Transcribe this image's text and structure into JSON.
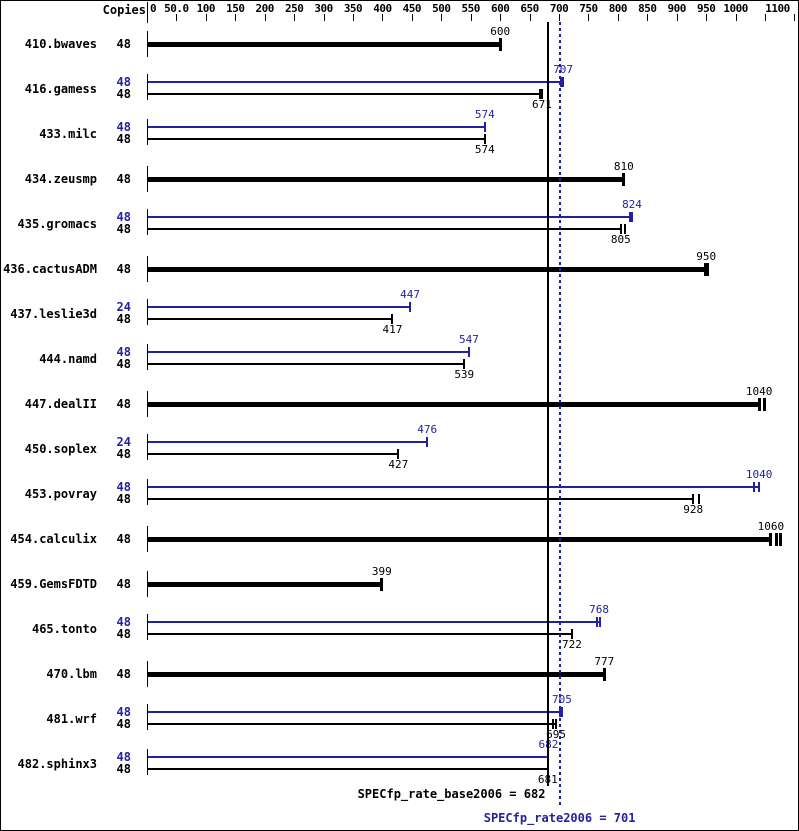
{
  "chart_data": {
    "type": "bar",
    "orientation": "horizontal",
    "copies_header": "Copies",
    "xlim": [
      0,
      1100
    ],
    "grid": false,
    "axis_ticks": [
      {
        "v": 0,
        "label": "0"
      },
      {
        "v": 50,
        "label": "50.0"
      },
      {
        "v": 100,
        "label": "100"
      },
      {
        "v": 150,
        "label": "150"
      },
      {
        "v": 200,
        "label": "200"
      },
      {
        "v": 250,
        "label": "250"
      },
      {
        "v": 300,
        "label": "300"
      },
      {
        "v": 350,
        "label": "350"
      },
      {
        "v": 400,
        "label": "400"
      },
      {
        "v": 450,
        "label": "450"
      },
      {
        "v": 500,
        "label": "500"
      },
      {
        "v": 550,
        "label": "550"
      },
      {
        "v": 600,
        "label": "600"
      },
      {
        "v": 650,
        "label": "650"
      },
      {
        "v": 700,
        "label": "700"
      },
      {
        "v": 750,
        "label": "750"
      },
      {
        "v": 800,
        "label": "800"
      },
      {
        "v": 850,
        "label": "850"
      },
      {
        "v": 900,
        "label": "900"
      },
      {
        "v": 950,
        "label": "950"
      },
      {
        "v": 1000,
        "label": "1000"
      },
      {
        "v": 1050,
        "label": ""
      },
      {
        "v": 1100,
        "label": "1100"
      }
    ],
    "series_colors": {
      "base": "#000000",
      "peak": "#2222a0"
    },
    "benchmarks": [
      {
        "name": "410.bwaves",
        "bars": [
          {
            "series": "base",
            "copies": "48",
            "value": 600,
            "label": "600",
            "label_side": "above",
            "bold": true,
            "marks": [
              600
            ]
          }
        ]
      },
      {
        "name": "416.gamess",
        "bars": [
          {
            "series": "peak",
            "copies": "48",
            "value": 707,
            "label": "707",
            "label_side": "above",
            "bold": false,
            "marks": [
              704,
              707
            ]
          },
          {
            "series": "base",
            "copies": "48",
            "value": 671,
            "label": "671",
            "label_side": "below",
            "bold": false,
            "marks": [
              668,
              671
            ]
          }
        ]
      },
      {
        "name": "433.milc",
        "bars": [
          {
            "series": "peak",
            "copies": "48",
            "value": 574,
            "label": "574",
            "label_side": "above",
            "bold": false,
            "marks": [
              574
            ]
          },
          {
            "series": "base",
            "copies": "48",
            "value": 574,
            "label": "574",
            "label_side": "below",
            "bold": false,
            "marks": [
              574
            ]
          }
        ]
      },
      {
        "name": "434.zeusmp",
        "bars": [
          {
            "series": "base",
            "copies": "48",
            "value": 810,
            "label": "810",
            "label_side": "above",
            "bold": true,
            "marks": [
              810
            ]
          }
        ]
      },
      {
        "name": "435.gromacs",
        "bars": [
          {
            "series": "peak",
            "copies": "48",
            "value": 824,
            "label": "824",
            "label_side": "above",
            "bold": false,
            "marks": [
              821,
              824
            ]
          },
          {
            "series": "base",
            "copies": "48",
            "value": 805,
            "label": "805",
            "label_side": "below",
            "bold": false,
            "marks": [
              805,
              812
            ]
          }
        ]
      },
      {
        "name": "436.cactusADM",
        "bars": [
          {
            "series": "base",
            "copies": "48",
            "value": 950,
            "label": "950",
            "label_side": "above",
            "bold": true,
            "marks": [
              949,
              953
            ]
          }
        ]
      },
      {
        "name": "437.leslie3d",
        "bars": [
          {
            "series": "peak",
            "copies": "24",
            "value": 447,
            "label": "447",
            "label_side": "above",
            "bold": false,
            "marks": [
              447
            ]
          },
          {
            "series": "base",
            "copies": "48",
            "value": 417,
            "label": "417",
            "label_side": "below",
            "bold": false,
            "marks": [
              417
            ]
          }
        ]
      },
      {
        "name": "444.namd",
        "bars": [
          {
            "series": "peak",
            "copies": "48",
            "value": 547,
            "label": "547",
            "label_side": "above",
            "bold": false,
            "marks": [
              547
            ]
          },
          {
            "series": "base",
            "copies": "48",
            "value": 539,
            "label": "539",
            "label_side": "below",
            "bold": false,
            "marks": [
              539
            ]
          }
        ]
      },
      {
        "name": "447.dealII",
        "bars": [
          {
            "series": "base",
            "copies": "48",
            "value": 1040,
            "label": "1040",
            "label_side": "above",
            "bold": true,
            "marks": [
              1040,
              1049
            ]
          }
        ]
      },
      {
        "name": "450.soplex",
        "bars": [
          {
            "series": "peak",
            "copies": "24",
            "value": 476,
            "label": "476",
            "label_side": "above",
            "bold": false,
            "marks": [
              476
            ]
          },
          {
            "series": "base",
            "copies": "48",
            "value": 427,
            "label": "427",
            "label_side": "below",
            "bold": false,
            "marks": [
              427
            ]
          }
        ]
      },
      {
        "name": "453.povray",
        "bars": [
          {
            "series": "peak",
            "copies": "48",
            "value": 1040,
            "label": "1040",
            "label_side": "above",
            "bold": false,
            "marks": [
              1032,
              1040
            ]
          },
          {
            "series": "base",
            "copies": "48",
            "value": 928,
            "label": "928",
            "label_side": "below",
            "bold": false,
            "marks": [
              928,
              938
            ]
          }
        ]
      },
      {
        "name": "454.calculix",
        "bars": [
          {
            "series": "base",
            "copies": "48",
            "value": 1060,
            "label": "1060",
            "label_side": "above",
            "bold": true,
            "marks": [
              1060,
              1069,
              1077
            ]
          }
        ]
      },
      {
        "name": "459.GemsFDTD",
        "bars": [
          {
            "series": "base",
            "copies": "48",
            "value": 399,
            "label": "399",
            "label_side": "above",
            "bold": true,
            "marks": [
              399
            ]
          }
        ]
      },
      {
        "name": "465.tonto",
        "bars": [
          {
            "series": "peak",
            "copies": "48",
            "value": 768,
            "label": "768",
            "label_side": "above",
            "bold": false,
            "marks": [
              764,
              770
            ]
          },
          {
            "series": "base",
            "copies": "48",
            "value": 722,
            "label": "722",
            "label_side": "below",
            "bold": false,
            "marks": [
              722
            ]
          }
        ]
      },
      {
        "name": "470.lbm",
        "bars": [
          {
            "series": "base",
            "copies": "48",
            "value": 777,
            "label": "777",
            "label_side": "above",
            "bold": true,
            "marks": [
              777
            ]
          }
        ]
      },
      {
        "name": "481.wrf",
        "bars": [
          {
            "series": "peak",
            "copies": "48",
            "value": 705,
            "label": "705",
            "label_side": "above",
            "bold": false,
            "marks": [
              701,
              705
            ]
          },
          {
            "series": "base",
            "copies": "48",
            "value": 695,
            "label": "695",
            "label_side": "below",
            "bold": false,
            "marks": [
              690,
              695
            ]
          }
        ]
      },
      {
        "name": "482.sphinx3",
        "bars": [
          {
            "series": "peak",
            "copies": "48",
            "value": 682,
            "label": "682",
            "label_side": "above",
            "bold": false,
            "marks": [
              682
            ]
          },
          {
            "series": "base",
            "copies": "48",
            "value": 681,
            "label": "681",
            "label_side": "below",
            "bold": false,
            "marks": [
              681
            ]
          }
        ]
      }
    ],
    "summary": {
      "base": {
        "text": "SPECfp_rate_base2006 = 682",
        "value": 682
      },
      "peak": {
        "text": "SPECfp_rate2006 = 701",
        "value": 701
      }
    }
  }
}
